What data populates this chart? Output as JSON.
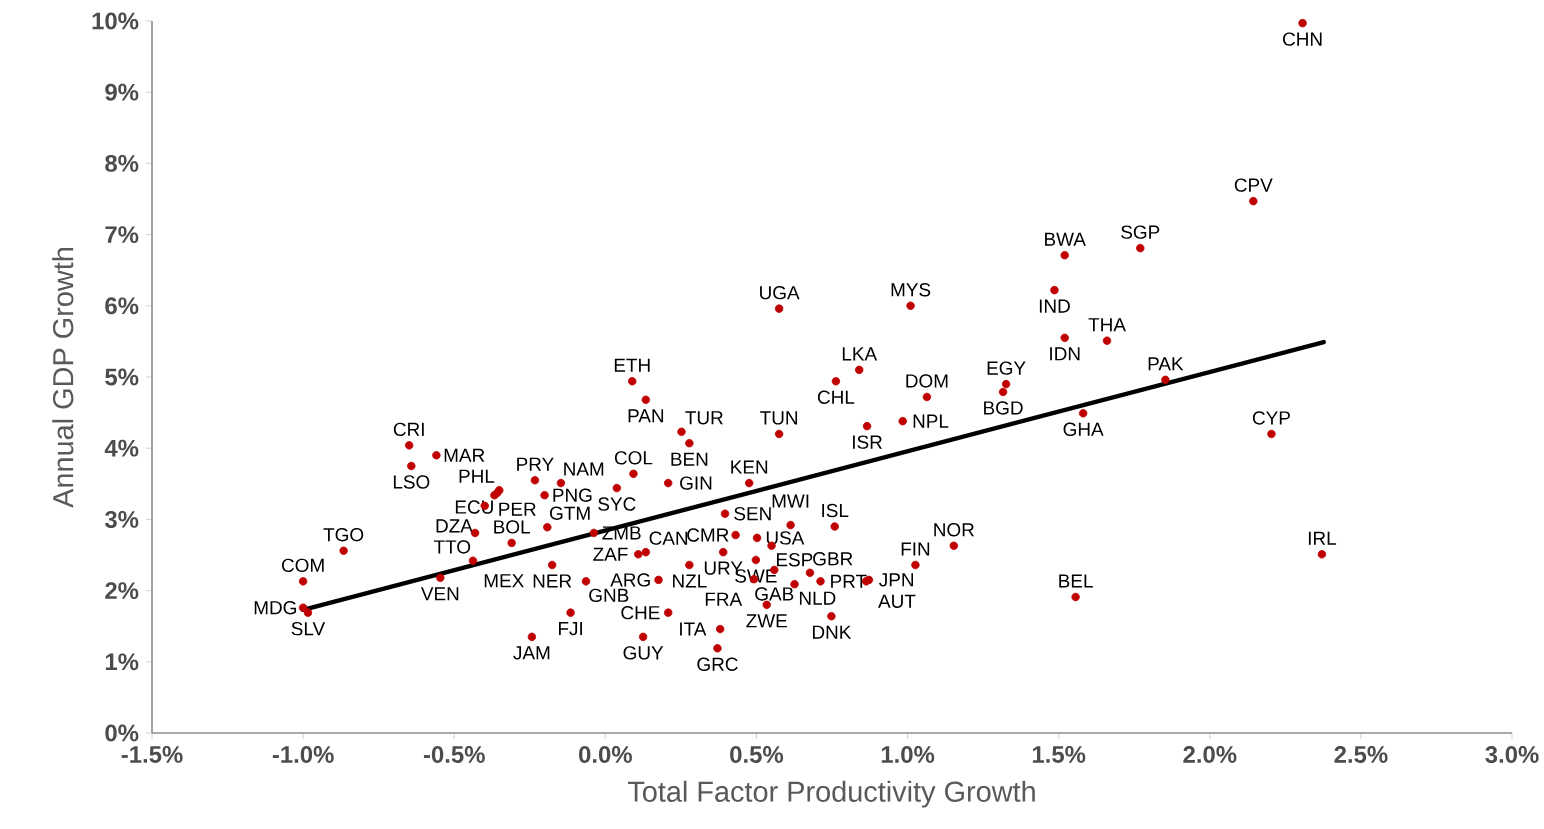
{
  "chart_data": {
    "type": "scatter",
    "xlabel": "Total Factor Productivity Growth",
    "ylabel": "Annual GDP Growth",
    "xlim": [
      -1.5,
      3.0
    ],
    "ylim": [
      0,
      10
    ],
    "xticks": [
      {
        "value": -1.5,
        "label": "-1.5%"
      },
      {
        "value": -1.0,
        "label": "-1.0%"
      },
      {
        "value": -0.5,
        "label": "-0.5%"
      },
      {
        "value": 0,
        "label": "0.0%"
      },
      {
        "value": 0.5,
        "label": "0.5%"
      },
      {
        "value": 1.0,
        "label": "1.0%"
      },
      {
        "value": 1.5,
        "label": "1.5%"
      },
      {
        "value": 2.0,
        "label": "2.0%"
      },
      {
        "value": 2.5,
        "label": "2.5%"
      },
      {
        "value": 3.0,
        "label": "3.0%"
      }
    ],
    "yticks": [
      {
        "value": 0,
        "label": "0%"
      },
      {
        "value": 1,
        "label": "1%"
      },
      {
        "value": 2,
        "label": "2%"
      },
      {
        "value": 3,
        "label": "3%"
      },
      {
        "value": 4,
        "label": "4%"
      },
      {
        "value": 5,
        "label": "5%"
      },
      {
        "value": 6,
        "label": "6%"
      },
      {
        "value": 7,
        "label": "7%"
      },
      {
        "value": 8,
        "label": "8%"
      },
      {
        "value": 9,
        "label": "9%"
      },
      {
        "value": 10,
        "label": "10%"
      }
    ],
    "grid": false,
    "series": [
      {
        "type": "scatter",
        "color": "#c00000",
        "marker": "circle",
        "x": [
          2.307,
          2.144,
          1.77,
          1.52,
          1.486,
          1.52,
          1.66,
          1.853,
          2.204,
          2.371,
          1.556,
          1.581,
          1.326,
          1.316,
          1.01,
          0.575,
          0.089,
          0.84,
          0.763,
          1.064,
          0.866,
          0.984,
          0.134,
          0.252,
          0.575,
          0.278,
          0.038,
          0.093,
          0.208,
          0.476,
          0.396,
          0.613,
          0.759,
          0.502,
          0.431,
          0.55,
          0.39,
          0.498,
          0.559,
          0.492,
          0.626,
          0.677,
          0.712,
          0.863,
          0.872,
          1.026,
          1.153,
          0.748,
          0.278,
          0.534,
          0.38,
          0.371,
          0.176,
          0.208,
          0.125,
          0.109,
          0.134,
          -0.038,
          -0.064,
          -0.115,
          -0.243,
          -0.176,
          -0.192,
          -0.201,
          -0.233,
          -0.147,
          -0.351,
          -0.358,
          -0.367,
          -0.399,
          -0.431,
          -0.31,
          -0.546,
          -0.438,
          -0.866,
          -1.0,
          -1.0,
          -0.984,
          -0.649,
          -0.559,
          -0.642
        ],
        "values": [
          9.97,
          7.47,
          6.81,
          6.71,
          6.22,
          5.55,
          5.51,
          4.96,
          4.2,
          2.51,
          1.91,
          4.49,
          4.9,
          4.79,
          6.0,
          5.96,
          4.94,
          5.1,
          4.94,
          4.72,
          4.31,
          4.38,
          4.68,
          4.23,
          4.2,
          4.07,
          3.44,
          3.64,
          3.51,
          3.51,
          3.08,
          2.92,
          2.9,
          2.74,
          2.78,
          2.63,
          2.54,
          2.43,
          2.29,
          2.16,
          2.09,
          2.25,
          2.13,
          2.13,
          2.15,
          2.36,
          2.63,
          1.64,
          2.36,
          1.8,
          1.46,
          1.19,
          2.15,
          1.69,
          1.35,
          2.51,
          2.54,
          2.81,
          2.13,
          1.69,
          1.35,
          2.36,
          2.89,
          3.34,
          3.55,
          3.51,
          3.41,
          3.37,
          3.34,
          3.19,
          2.81,
          2.67,
          2.18,
          2.42,
          2.56,
          2.13,
          1.76,
          1.69,
          4.04,
          3.9,
          3.75
        ],
        "value_labels": [
          "CHN",
          "CPV",
          "SGP",
          "BWA",
          "IND",
          "IDN",
          "THA",
          "PAK",
          "CYP",
          "IRL",
          "BEL",
          "GHA",
          "EGY",
          "BGD",
          "MYS",
          "UGA",
          "ETH",
          "LKA",
          "CHL",
          "DOM",
          "ISR",
          "NPL",
          "PAN",
          "TUR",
          "TUN",
          "BEN",
          "SYC",
          "COL",
          "GIN",
          "KEN",
          "SEN",
          "MWI",
          "ISL",
          "USA",
          "CMR",
          "ESP",
          "URY",
          "SWE",
          "GAB",
          "FRA",
          "NLD",
          "GBR",
          "PRT",
          "AUT",
          "JPN",
          "FIN",
          "NOR",
          "DNK",
          "NZL",
          "ZWE",
          "ITA",
          "GRC",
          "ARG",
          "CHE",
          "GUY",
          "ZAF",
          "CAN",
          "ZMB",
          "GNB",
          "FJI",
          "JAM",
          "NER",
          "GTM",
          "PNG",
          "PRY",
          "NAM",
          "PHL",
          "ECU",
          "PER",
          "DZA",
          "TTO",
          "BOL",
          "VEN",
          "MEX",
          "TGO",
          "COM",
          "MDG",
          "SLV",
          "CRI",
          "MAR",
          "LSO"
        ]
      },
      {
        "type": "line",
        "color": "#000000",
        "x": [
          -1.0,
          2.377
        ],
        "values": [
          1.73,
          5.49
        ]
      }
    ]
  }
}
